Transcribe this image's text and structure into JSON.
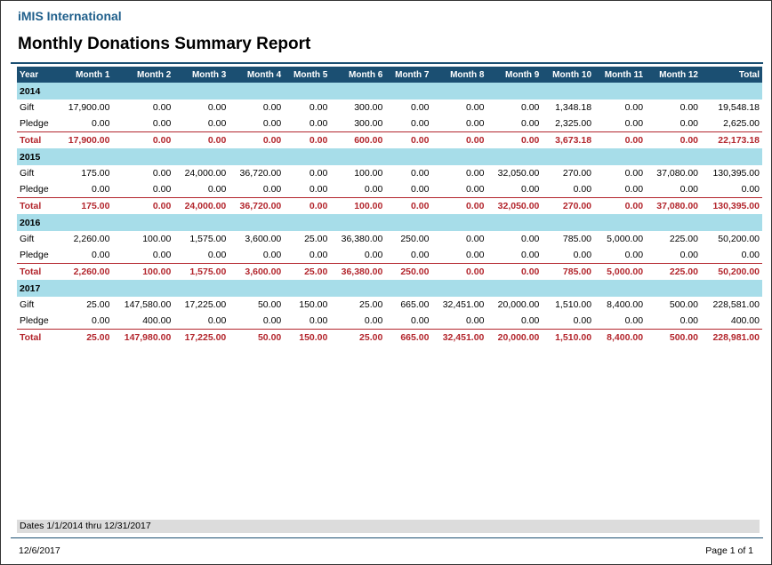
{
  "header": {
    "org": "iMIS International",
    "title": "Monthly Donations Summary Report"
  },
  "table": {
    "columns": [
      "Year",
      "Month 1",
      "Month 2",
      "Month 3",
      "Month 4",
      "Month 5",
      "Month 6",
      "Month 7",
      "Month 8",
      "Month 9",
      "Month 10",
      "Month 11",
      "Month 12",
      "Total"
    ],
    "groups": [
      {
        "year": "2014",
        "rows": [
          [
            "Gift",
            "17,900.00",
            "0.00",
            "0.00",
            "0.00",
            "0.00",
            "300.00",
            "0.00",
            "0.00",
            "0.00",
            "1,348.18",
            "0.00",
            "0.00",
            "19,548.18"
          ],
          [
            "Pledge",
            "0.00",
            "0.00",
            "0.00",
            "0.00",
            "0.00",
            "300.00",
            "0.00",
            "0.00",
            "0.00",
            "2,325.00",
            "0.00",
            "0.00",
            "2,625.00"
          ]
        ],
        "total": [
          "Total",
          "17,900.00",
          "0.00",
          "0.00",
          "0.00",
          "0.00",
          "600.00",
          "0.00",
          "0.00",
          "0.00",
          "3,673.18",
          "0.00",
          "0.00",
          "22,173.18"
        ]
      },
      {
        "year": "2015",
        "rows": [
          [
            "Gift",
            "175.00",
            "0.00",
            "24,000.00",
            "36,720.00",
            "0.00",
            "100.00",
            "0.00",
            "0.00",
            "32,050.00",
            "270.00",
            "0.00",
            "37,080.00",
            "130,395.00"
          ],
          [
            "Pledge",
            "0.00",
            "0.00",
            "0.00",
            "0.00",
            "0.00",
            "0.00",
            "0.00",
            "0.00",
            "0.00",
            "0.00",
            "0.00",
            "0.00",
            "0.00"
          ]
        ],
        "total": [
          "Total",
          "175.00",
          "0.00",
          "24,000.00",
          "36,720.00",
          "0.00",
          "100.00",
          "0.00",
          "0.00",
          "32,050.00",
          "270.00",
          "0.00",
          "37,080.00",
          "130,395.00"
        ]
      },
      {
        "year": "2016",
        "rows": [
          [
            "Gift",
            "2,260.00",
            "100.00",
            "1,575.00",
            "3,600.00",
            "25.00",
            "36,380.00",
            "250.00",
            "0.00",
            "0.00",
            "785.00",
            "5,000.00",
            "225.00",
            "50,200.00"
          ],
          [
            "Pledge",
            "0.00",
            "0.00",
            "0.00",
            "0.00",
            "0.00",
            "0.00",
            "0.00",
            "0.00",
            "0.00",
            "0.00",
            "0.00",
            "0.00",
            "0.00"
          ]
        ],
        "total": [
          "Total",
          "2,260.00",
          "100.00",
          "1,575.00",
          "3,600.00",
          "25.00",
          "36,380.00",
          "250.00",
          "0.00",
          "0.00",
          "785.00",
          "5,000.00",
          "225.00",
          "50,200.00"
        ]
      },
      {
        "year": "2017",
        "rows": [
          [
            "Gift",
            "25.00",
            "147,580.00",
            "17,225.00",
            "50.00",
            "150.00",
            "25.00",
            "665.00",
            "32,451.00",
            "20,000.00",
            "1,510.00",
            "8,400.00",
            "500.00",
            "228,581.00"
          ],
          [
            "Pledge",
            "0.00",
            "400.00",
            "0.00",
            "0.00",
            "0.00",
            "0.00",
            "0.00",
            "0.00",
            "0.00",
            "0.00",
            "0.00",
            "0.00",
            "400.00"
          ]
        ],
        "total": [
          "Total",
          "25.00",
          "147,980.00",
          "17,225.00",
          "50.00",
          "150.00",
          "25.00",
          "665.00",
          "32,451.00",
          "20,000.00",
          "1,510.00",
          "8,400.00",
          "500.00",
          "228,981.00"
        ]
      }
    ]
  },
  "footer": {
    "date_range": "Dates 1/1/2014 thru 12/31/2017",
    "print_date": "12/6/2017",
    "page": "Page 1 of  1"
  },
  "colors": {
    "header_bg": "#1b4f72",
    "year_band": "#a7dde9",
    "total_text": "#b3262d",
    "org_text": "#1f5f8b"
  }
}
